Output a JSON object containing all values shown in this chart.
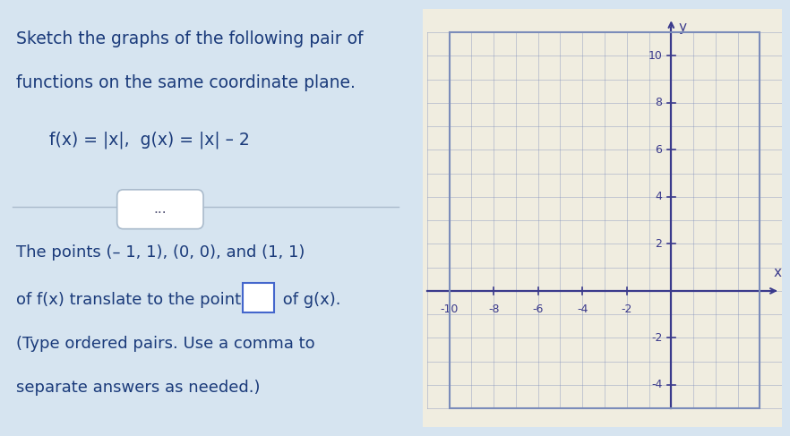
{
  "bg_left": "#d6e4f0",
  "bg_right": "#f0ede0",
  "title_line1": "Sketch the graphs of the following pair of",
  "title_line2": "functions on the same coordinate plane.",
  "func_label": "f(x) = |x|,  g(x) = |x| – 2",
  "divider_text": "...",
  "body_line1": "The points (– 1, 1), (0, 0), and (1, 1)",
  "body_line2": "of f(x) translate to the points",
  "body_line3": "of g(x).",
  "body_line4": "(Type ordered pairs. Use a comma to",
  "body_line5": "separate answers as needed.)",
  "grid_color": "#7b8cba",
  "axis_color": "#3a3a8c",
  "text_color": "#1a3a7a",
  "divider_color": "#aabbcc",
  "box_color": "#4466cc",
  "xticks": [
    -10,
    -8,
    -6,
    -4,
    -2
  ],
  "yticks": [
    -4,
    -2,
    2,
    4,
    6,
    8,
    10
  ],
  "xlabel": "x",
  "ylabel": "y"
}
